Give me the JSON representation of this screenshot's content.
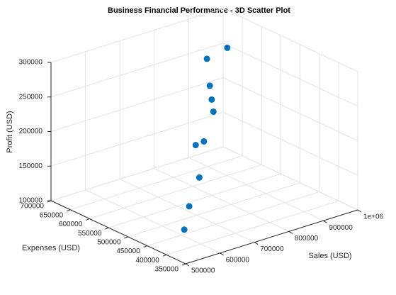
{
  "chart_data": {
    "type": "scatter3d",
    "title": "Business Financial Performance - 3D Scatter Plot",
    "xlabel": "Sales (USD)",
    "ylabel": "Expenses (USD)",
    "zlabel": "Profit (USD)",
    "x": [
      504000,
      553000,
      598000,
      707000,
      686000,
      736000,
      778000,
      826000,
      916000,
      869000
    ],
    "y": [
      357000,
      388000,
      402000,
      509000,
      469000,
      489000,
      531000,
      579000,
      667000,
      572000
    ],
    "z": [
      147000,
      165000,
      196000,
      198000,
      217000,
      247000,
      247000,
      247000,
      249000,
      297000
    ],
    "color": "#0072bd",
    "xlim": [
      500000,
      1000000
    ],
    "xticks": [
      500000,
      600000,
      700000,
      800000,
      900000,
      {
        "value": 1000000,
        "label": "1e+06"
      }
    ],
    "ylim": [
      350000,
      700000
    ],
    "yticks": [
      350000,
      400000,
      450000,
      500000,
      550000,
      600000,
      650000,
      700000
    ],
    "zlim": [
      100000,
      300000
    ],
    "zticks": [
      100000,
      150000,
      200000,
      250000,
      300000
    ],
    "grid": true
  }
}
